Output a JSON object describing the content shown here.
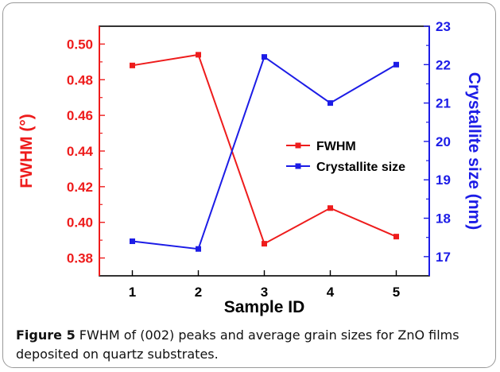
{
  "chart_data": {
    "type": "line",
    "categories": [
      1,
      2,
      3,
      4,
      5
    ],
    "xlabel": "Sample ID",
    "y_left": {
      "label": "FWHM (°)",
      "range": [
        0.37,
        0.51
      ],
      "ticks": [
        0.38,
        0.4,
        0.42,
        0.44,
        0.46,
        0.48,
        0.5
      ],
      "tick_labels": [
        "0.38",
        "0.40",
        "0.42",
        "0.44",
        "0.46",
        "0.48",
        "0.50"
      ],
      "color": "#ee1c1c"
    },
    "y_right": {
      "label": "Crystallite size (nm)",
      "range": [
        16.5,
        23
      ],
      "ticks": [
        17,
        18,
        19,
        20,
        21,
        22,
        23
      ],
      "tick_labels": [
        "17",
        "18",
        "19",
        "20",
        "21",
        "22",
        "23"
      ],
      "color": "#1c1ce6"
    },
    "series": [
      {
        "name": "FWHM",
        "axis": "left",
        "color": "#ee1c1c",
        "values": [
          0.488,
          0.494,
          0.388,
          0.408,
          0.392
        ]
      },
      {
        "name": "Crystallite size",
        "axis": "right",
        "color": "#1c1ce6",
        "values": [
          17.4,
          17.2,
          22.2,
          21.0,
          22.0
        ]
      }
    ],
    "legend_position": "center-right",
    "grid": false
  },
  "caption": {
    "label": "Figure 5",
    "text": "FWHM of (002) peaks and average grain sizes for ZnO films deposited on quartz substrates."
  }
}
